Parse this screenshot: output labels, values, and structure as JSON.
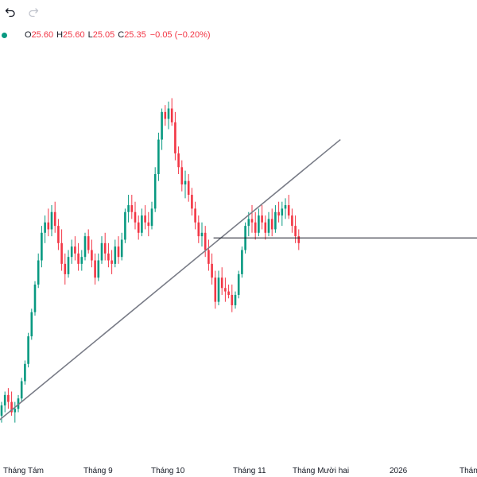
{
  "toolbar": {
    "undo_icon": "undo-icon",
    "redo_icon": "redo-icon"
  },
  "legend": {
    "status_color": "#089981",
    "o_key": "O",
    "o_val": "25.60",
    "h_key": "H",
    "h_val": "25.60",
    "l_key": "L",
    "l_val": "25.05",
    "c_key": "C",
    "c_val": "25.35",
    "change": "−0.05 (−0.20%)"
  },
  "chart_data": {
    "type": "candlestick",
    "colors": {
      "up": "#089981",
      "down": "#f23645",
      "trendline": "#787b86",
      "hline": "#131722"
    },
    "x_axis_labels": [
      "Tháng Tám",
      "Tháng 9",
      "Tháng 10",
      "Tháng 11",
      "Tháng Mười hai",
      "2026",
      "Tháng"
    ],
    "y_range": [
      21.0,
      33.0
    ],
    "ohlc": [
      [
        22.2,
        22.6,
        22.0,
        22.5
      ],
      [
        22.5,
        22.9,
        22.3,
        22.8
      ],
      [
        22.8,
        23.0,
        22.4,
        22.6
      ],
      [
        22.6,
        22.9,
        22.2,
        22.3
      ],
      [
        22.3,
        22.6,
        22.0,
        22.4
      ],
      [
        22.4,
        22.8,
        22.3,
        22.7
      ],
      [
        22.7,
        23.3,
        22.6,
        23.2
      ],
      [
        23.2,
        23.8,
        23.1,
        23.7
      ],
      [
        23.7,
        24.6,
        23.6,
        24.5
      ],
      [
        24.5,
        25.3,
        24.4,
        25.2
      ],
      [
        25.2,
        26.1,
        25.1,
        26.0
      ],
      [
        26.0,
        26.9,
        25.9,
        26.7
      ],
      [
        26.7,
        27.7,
        26.5,
        27.5
      ],
      [
        27.5,
        28.0,
        27.2,
        27.8
      ],
      [
        27.8,
        28.2,
        27.4,
        27.6
      ],
      [
        27.6,
        28.3,
        27.4,
        28.1
      ],
      [
        28.1,
        28.4,
        27.5,
        27.7
      ],
      [
        27.7,
        27.9,
        27.0,
        27.2
      ],
      [
        27.2,
        27.6,
        26.4,
        26.6
      ],
      [
        26.6,
        26.9,
        26.0,
        26.3
      ],
      [
        26.3,
        27.0,
        26.2,
        26.8
      ],
      [
        26.8,
        27.3,
        26.6,
        27.1
      ],
      [
        27.1,
        27.4,
        26.7,
        26.9
      ],
      [
        26.9,
        27.2,
        26.4,
        26.6
      ],
      [
        26.6,
        27.0,
        26.4,
        26.8
      ],
      [
        26.8,
        27.5,
        26.7,
        27.4
      ],
      [
        27.4,
        27.6,
        26.9,
        27.0
      ],
      [
        27.0,
        27.3,
        26.5,
        26.7
      ],
      [
        26.7,
        26.9,
        26.0,
        26.2
      ],
      [
        26.2,
        26.9,
        26.1,
        26.7
      ],
      [
        26.7,
        27.4,
        26.6,
        27.2
      ],
      [
        27.2,
        27.5,
        26.7,
        26.9
      ],
      [
        26.9,
        27.2,
        26.5,
        26.7
      ],
      [
        26.7,
        27.0,
        26.3,
        26.6
      ],
      [
        26.6,
        27.3,
        26.5,
        27.1
      ],
      [
        27.1,
        27.4,
        26.6,
        26.8
      ],
      [
        26.8,
        27.5,
        26.7,
        27.3
      ],
      [
        27.3,
        28.2,
        27.2,
        28.1
      ],
      [
        28.1,
        28.6,
        27.8,
        28.3
      ],
      [
        28.3,
        28.6,
        27.9,
        28.1
      ],
      [
        28.1,
        28.4,
        27.6,
        27.8
      ],
      [
        27.8,
        28.0,
        27.3,
        27.5
      ],
      [
        27.5,
        28.2,
        27.4,
        28.0
      ],
      [
        28.0,
        28.3,
        27.6,
        27.8
      ],
      [
        27.8,
        28.1,
        27.4,
        27.7
      ],
      [
        27.7,
        28.4,
        27.6,
        28.2
      ],
      [
        28.2,
        29.4,
        28.1,
        29.2
      ],
      [
        29.2,
        30.4,
        29.0,
        30.2
      ],
      [
        30.2,
        31.1,
        29.9,
        31.0
      ],
      [
        31.0,
        31.2,
        30.6,
        30.8
      ],
      [
        30.8,
        31.3,
        30.5,
        31.1
      ],
      [
        31.1,
        31.4,
        30.6,
        30.7
      ],
      [
        30.7,
        31.0,
        29.6,
        29.8
      ],
      [
        29.8,
        30.0,
        29.2,
        29.4
      ],
      [
        29.4,
        29.6,
        28.7,
        28.9
      ],
      [
        28.9,
        29.3,
        28.5,
        29.0
      ],
      [
        29.0,
        29.2,
        28.4,
        28.6
      ],
      [
        28.6,
        28.8,
        28.0,
        28.2
      ],
      [
        28.2,
        28.4,
        27.6,
        27.8
      ],
      [
        27.8,
        28.0,
        27.2,
        27.4
      ],
      [
        27.4,
        27.8,
        27.1,
        27.5
      ],
      [
        27.5,
        27.7,
        26.8,
        27.0
      ],
      [
        27.0,
        27.3,
        26.4,
        26.6
      ],
      [
        26.6,
        26.9,
        26.0,
        26.2
      ],
      [
        26.2,
        26.4,
        25.3,
        25.5
      ],
      [
        25.5,
        26.4,
        25.4,
        26.2
      ],
      [
        26.2,
        26.5,
        25.7,
        25.9
      ],
      [
        25.9,
        26.2,
        25.5,
        25.8
      ],
      [
        25.8,
        26.0,
        25.6,
        25.7
      ],
      [
        25.7,
        26.0,
        25.2,
        25.4
      ],
      [
        25.4,
        25.8,
        25.3,
        25.7
      ],
      [
        25.7,
        26.4,
        25.6,
        26.3
      ],
      [
        26.3,
        27.1,
        26.2,
        27.0
      ],
      [
        27.0,
        27.8,
        26.9,
        27.7
      ],
      [
        27.7,
        28.1,
        27.4,
        27.9
      ],
      [
        27.9,
        28.3,
        27.5,
        27.8
      ],
      [
        27.8,
        28.1,
        27.3,
        27.5
      ],
      [
        27.5,
        28.2,
        27.4,
        28.0
      ],
      [
        28.0,
        28.3,
        27.6,
        27.8
      ],
      [
        27.8,
        28.0,
        27.3,
        27.5
      ],
      [
        27.5,
        28.1,
        27.4,
        27.9
      ],
      [
        27.9,
        28.2,
        27.4,
        27.6
      ],
      [
        27.6,
        28.3,
        27.5,
        28.1
      ],
      [
        28.1,
        28.4,
        27.8,
        28.0
      ],
      [
        28.0,
        28.4,
        27.7,
        28.2
      ],
      [
        28.2,
        28.5,
        27.9,
        28.3
      ],
      [
        28.3,
        28.6,
        27.9,
        28.0
      ],
      [
        28.0,
        28.2,
        27.5,
        27.7
      ],
      [
        27.7,
        28.0,
        27.2,
        27.4
      ],
      [
        27.4,
        27.6,
        27.0,
        27.2
      ]
    ],
    "trendline": {
      "start": [
        0,
        22.05
      ],
      "end": [
        101,
        30.2
      ]
    },
    "horizontal_line": {
      "start_index": 63,
      "value": 27.35
    }
  }
}
